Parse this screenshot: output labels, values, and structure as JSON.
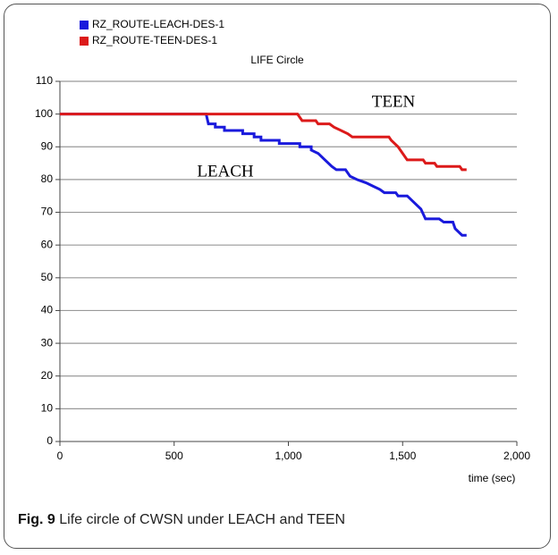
{
  "chart_data": {
    "type": "line",
    "title": "LIFE Circle",
    "x_label": "time (sec)",
    "caption_label": "Fig. 9",
    "caption_text": "Life circle of CWSN under LEACH and TEEN",
    "annotations": [
      "TEEN",
      "LEACH"
    ],
    "xlim": [
      0,
      2000
    ],
    "xticks": [
      0,
      500,
      {
        "value": 1000,
        "label": "1,000"
      },
      {
        "value": 1500,
        "label": "1,500"
      },
      {
        "value": 2000,
        "label": "2,000"
      }
    ],
    "ylim": [
      0,
      110
    ],
    "yticks": [
      0,
      10,
      20,
      30,
      40,
      50,
      60,
      70,
      80,
      90,
      100,
      110
    ],
    "grid": true,
    "legend": "top-left",
    "series": [
      {
        "name": "RZ_ROUTE-LEACH-DES-1",
        "color": "#1a1adc",
        "x": [
          0,
          640,
          650,
          680,
          680,
          720,
          720,
          800,
          800,
          850,
          850,
          880,
          880,
          960,
          960,
          1050,
          1050,
          1100,
          1100,
          1130,
          1160,
          1190,
          1210,
          1250,
          1270,
          1300,
          1340,
          1370,
          1400,
          1420,
          1470,
          1480,
          1520,
          1550,
          1580,
          1600,
          1660,
          1680,
          1720,
          1730,
          1760,
          1780
        ],
        "values": [
          100,
          100,
          97,
          97,
          96,
          96,
          95,
          95,
          94,
          94,
          93,
          93,
          92,
          92,
          91,
          91,
          90,
          90,
          89,
          88,
          86,
          84,
          83,
          83,
          81,
          80,
          79,
          78,
          77,
          76,
          76,
          75,
          75,
          73,
          71,
          68,
          68,
          67,
          67,
          65,
          63,
          63
        ]
      },
      {
        "name": "RZ_ROUTE-TEEN-DES-1",
        "color": "#dc1a1a",
        "x": [
          0,
          1040,
          1060,
          1120,
          1130,
          1180,
          1200,
          1230,
          1260,
          1280,
          1440,
          1450,
          1480,
          1500,
          1520,
          1590,
          1600,
          1640,
          1650,
          1750,
          1760,
          1780
        ],
        "values": [
          100,
          100,
          98,
          98,
          97,
          97,
          96,
          95,
          94,
          93,
          93,
          92,
          90,
          88,
          86,
          86,
          85,
          85,
          84,
          84,
          83,
          83
        ]
      }
    ]
  }
}
